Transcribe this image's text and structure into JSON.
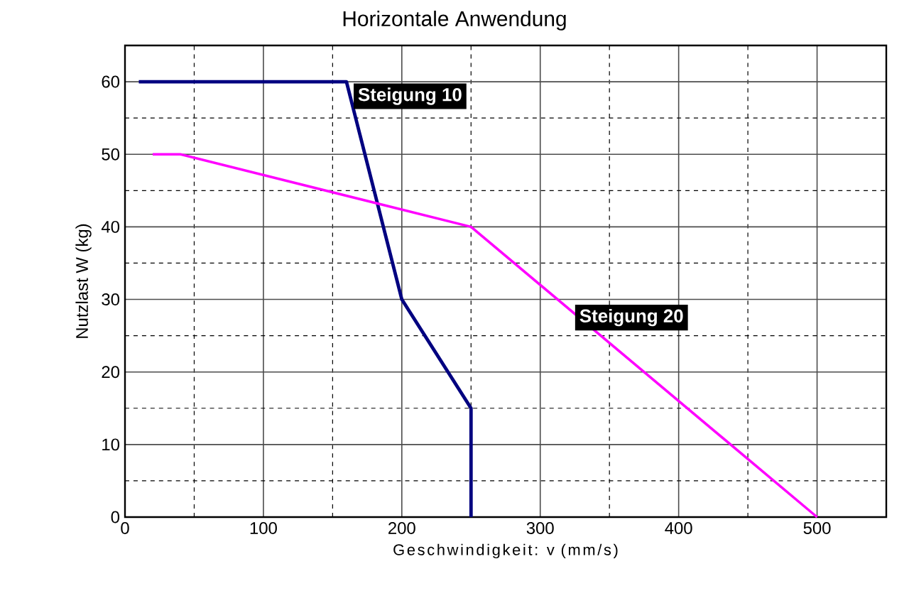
{
  "chart_data": {
    "type": "line",
    "title": "Horizontale Anwendung",
    "xlabel": "Geschwindigkeit: v (mm/s)",
    "ylabel": "Nutzlast W (kg)",
    "xlim": [
      0,
      550
    ],
    "ylim": [
      0,
      65
    ],
    "xticks": [
      0,
      100,
      200,
      300,
      400,
      500
    ],
    "yticks": [
      0,
      10,
      20,
      30,
      40,
      50,
      60
    ],
    "grid": true,
    "series": [
      {
        "color": "#000080",
        "x": [
          10,
          160,
          200,
          250,
          250
        ],
        "values": [
          60,
          60,
          30,
          15,
          0
        ]
      },
      {
        "color": "#ff00ff",
        "x": [
          20,
          40,
          250,
          500
        ],
        "values": [
          50,
          50,
          40,
          0
        ]
      }
    ],
    "annotations": [
      {
        "text": "Steigung 10",
        "x": 165,
        "y": 58
      },
      {
        "text": "Steigung 20",
        "x": 325,
        "y": 27.5
      }
    ]
  }
}
